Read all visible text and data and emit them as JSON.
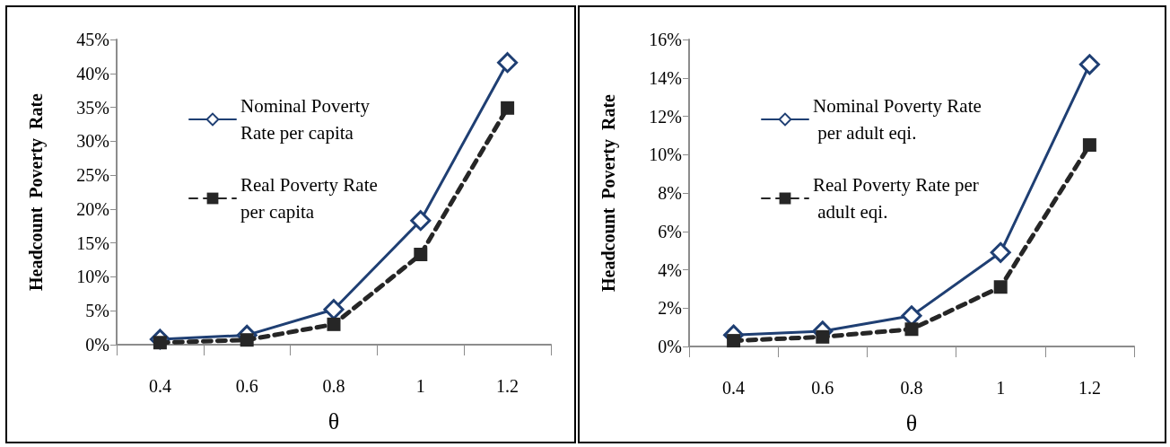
{
  "chart_data": [
    {
      "type": "line",
      "xlabel": "θ",
      "ylabel": "Headcount  Poverty  Rate",
      "categories": [
        "0.4",
        "0.6",
        "0.8",
        "1",
        "1.2"
      ],
      "series": [
        {
          "name": "Nominal Poverty Rate per capita",
          "color": "#1f3f73",
          "marker": "diamond",
          "line_style": "solid",
          "values": [
            0.8,
            1.4,
            5.2,
            18.3,
            41.6
          ]
        },
        {
          "name": "Real Poverty Rate per capita",
          "color": "#262626",
          "marker": "square",
          "line_style": "dashed",
          "values": [
            0.3,
            0.7,
            3.0,
            13.3,
            34.9
          ]
        }
      ],
      "ylim": [
        0,
        45
      ],
      "yticks": [
        {
          "value": 0,
          "label": "0%"
        },
        {
          "value": 5,
          "label": "5%"
        },
        {
          "value": 10,
          "label": "10%"
        },
        {
          "value": 15,
          "label": "15%"
        },
        {
          "value": 20,
          "label": "20%"
        },
        {
          "value": 25,
          "label": "25%"
        },
        {
          "value": 30,
          "label": "30%"
        },
        {
          "value": 35,
          "label": "35%"
        },
        {
          "value": 40,
          "label": "40%"
        },
        {
          "value": 45,
          "label": "45%"
        }
      ],
      "grid": false,
      "legend": "top left"
    },
    {
      "type": "line",
      "xlabel": "θ",
      "ylabel": "Headcount  Poverty  Rate",
      "categories": [
        "0.4",
        "0.6",
        "0.8",
        "1",
        "1.2"
      ],
      "series": [
        {
          "name": "Nominal Poverty Rate per adult eqi.",
          "color": "#1f3f73",
          "marker": "diamond",
          "line_style": "solid",
          "values": [
            0.6,
            0.8,
            1.6,
            4.9,
            14.7
          ]
        },
        {
          "name": "Real Poverty Rate per adult eqi.",
          "color": "#262626",
          "marker": "square",
          "line_style": "dashed",
          "values": [
            0.3,
            0.5,
            0.9,
            3.1,
            10.5
          ]
        }
      ],
      "ylim": [
        0,
        16
      ],
      "yticks": [
        {
          "value": 0,
          "label": "0%"
        },
        {
          "value": 2,
          "label": "2%"
        },
        {
          "value": 4,
          "label": "4%"
        },
        {
          "value": 6,
          "label": "6%"
        },
        {
          "value": 8,
          "label": "8%"
        },
        {
          "value": 10,
          "label": "10%"
        },
        {
          "value": 12,
          "label": "12%"
        },
        {
          "value": 14,
          "label": "14%"
        },
        {
          "value": 16,
          "label": "16%"
        }
      ],
      "grid": false,
      "legend": "top left"
    }
  ]
}
